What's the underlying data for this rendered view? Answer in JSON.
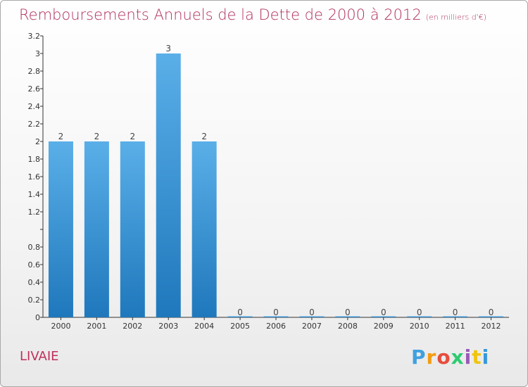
{
  "header": {
    "title": "Remboursements Annuels de la Dette de 2000 à 2012",
    "unit": "(en milliers d'€)"
  },
  "commune": "LIVAIE",
  "logo": {
    "letters": [
      "P",
      "r",
      "o",
      "x",
      "i",
      "t",
      "i"
    ],
    "colors": [
      "#3fa0e0",
      "#f39c12",
      "#e74c3c",
      "#2ecc71",
      "#9b59b6",
      "#f1c40f",
      "#3498db"
    ]
  },
  "colors": {
    "bar_top": "#5aafe8",
    "bar_bottom": "#1f78bc",
    "axis": "#333333"
  },
  "chart_data": {
    "type": "bar",
    "categories": [
      "2000",
      "2001",
      "2002",
      "2003",
      "2004",
      "2005",
      "2006",
      "2007",
      "2008",
      "2009",
      "2010",
      "2011",
      "2012"
    ],
    "values": [
      2,
      2,
      2,
      3,
      2,
      0,
      0,
      0,
      0,
      0,
      0,
      0,
      0
    ],
    "value_labels": [
      "2",
      "2",
      "2",
      "3",
      "2",
      "0",
      "0",
      "0",
      "0",
      "0",
      "0",
      "0",
      "0"
    ],
    "title": "Remboursements Annuels de la Dette de 2000 à 2012",
    "xlabel": "",
    "ylabel": "",
    "ylim": [
      0,
      3.2
    ],
    "yticks": [
      0,
      0.2,
      0.4,
      0.6,
      0.8,
      1,
      1.2,
      1.4,
      1.6,
      1.8,
      2,
      2.2,
      2.4,
      2.6,
      2.8,
      3,
      3.2
    ],
    "ytick_labels": [
      "0",
      "0.2",
      "0.4",
      "0.6",
      "0.8",
      "",
      "1.2",
      "1.4",
      "1.6",
      "1.8",
      "2",
      "2.2",
      "2.4",
      "2.6",
      "2.8",
      "3",
      "3.2"
    ],
    "grid": false,
    "legend": "none"
  }
}
